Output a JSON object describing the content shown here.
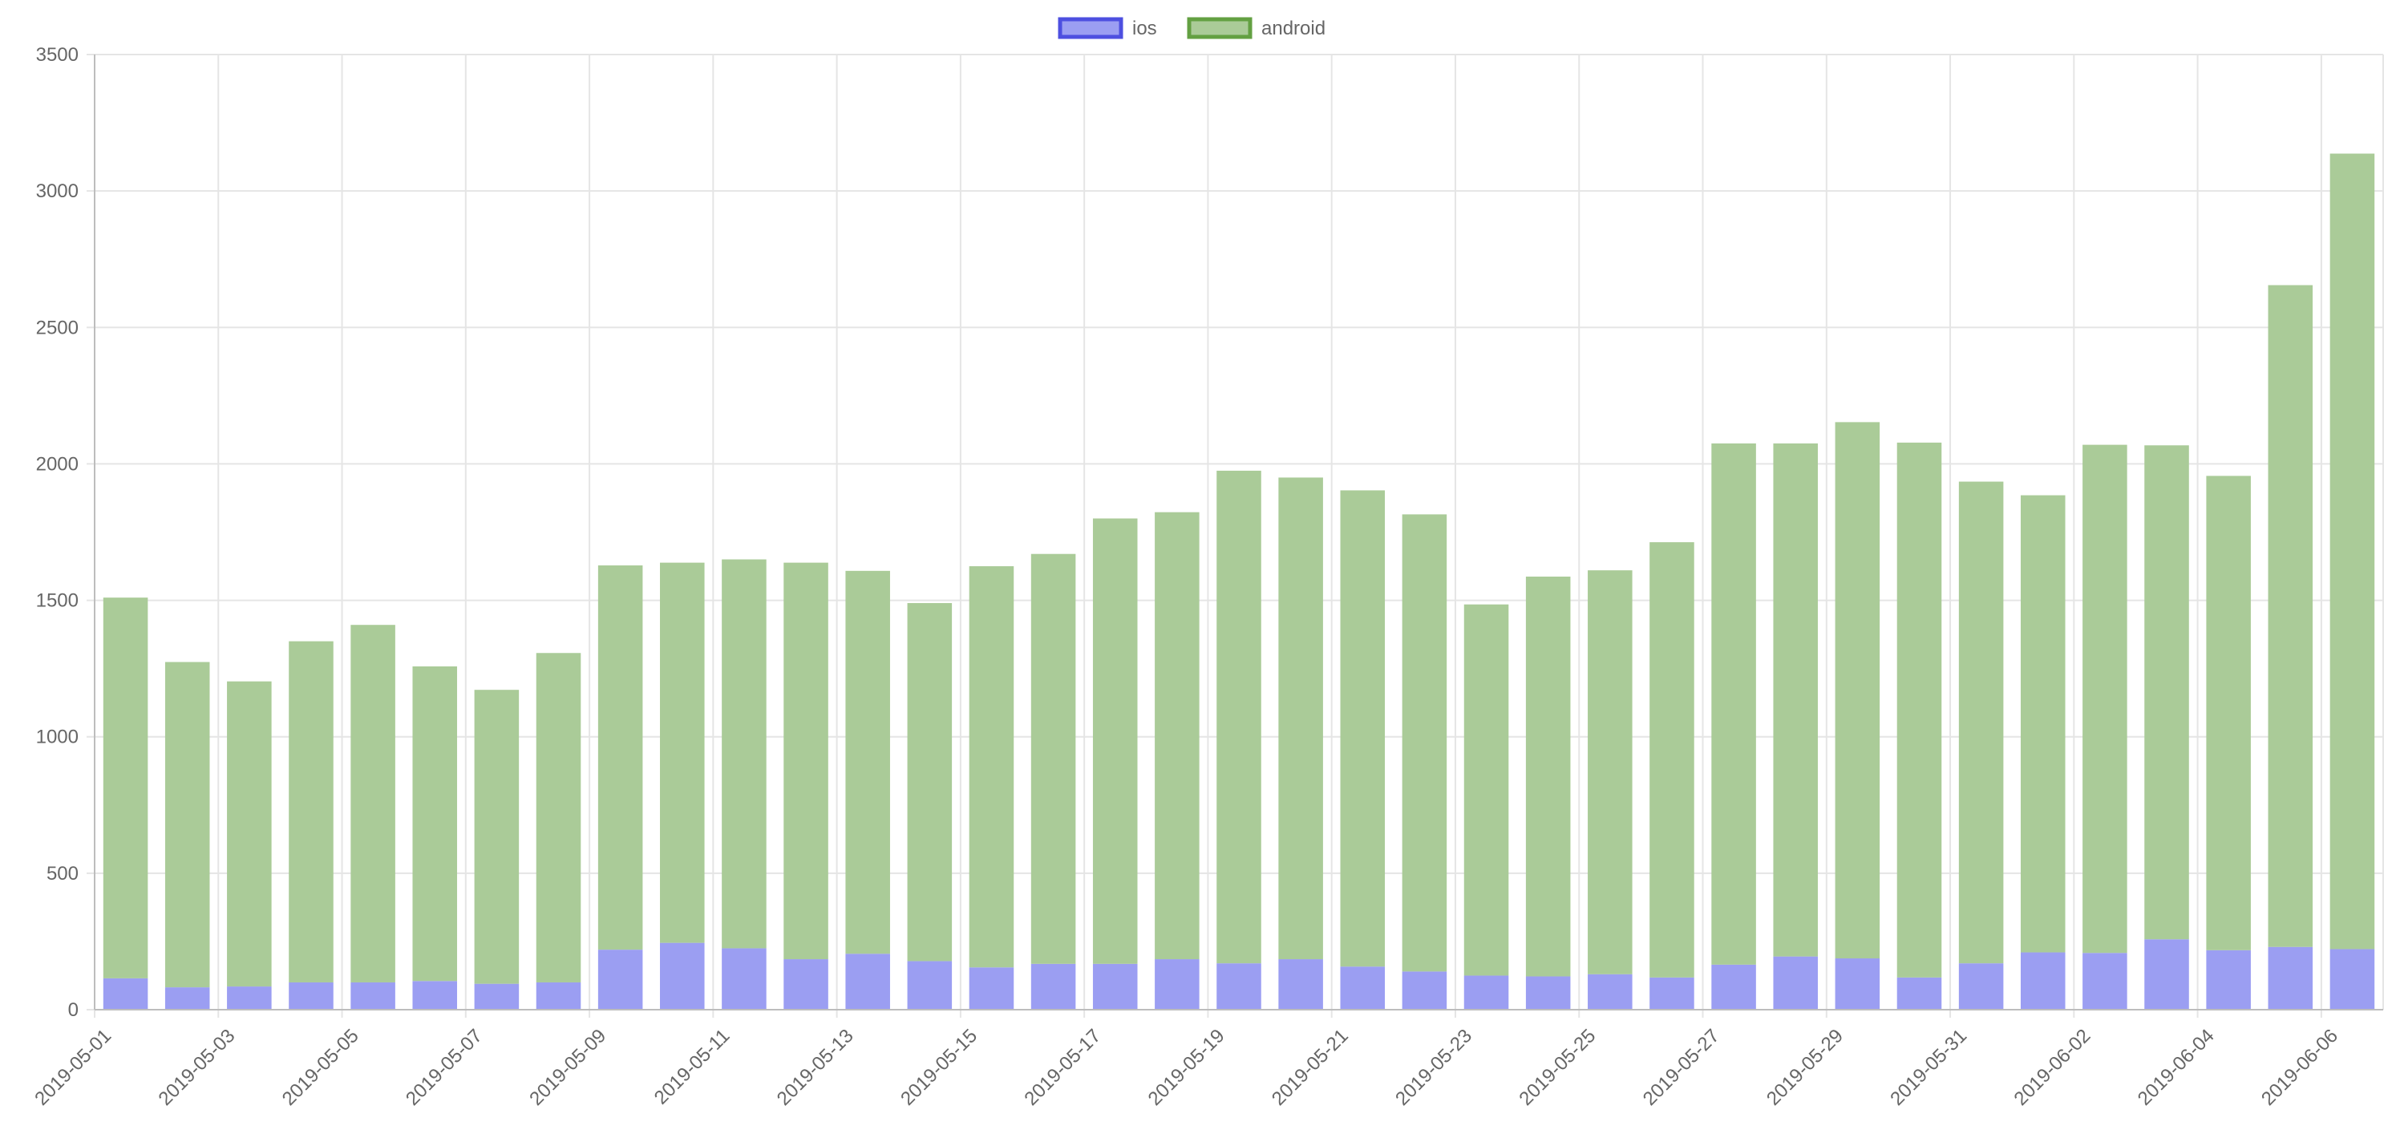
{
  "chart_data": {
    "type": "bar",
    "stacked": true,
    "grid": true,
    "legend_position": "top-center",
    "categories": [
      "2019-05-01",
      "2019-05-02",
      "2019-05-03",
      "2019-05-04",
      "2019-05-05",
      "2019-05-06",
      "2019-05-07",
      "2019-05-08",
      "2019-05-09",
      "2019-05-10",
      "2019-05-11",
      "2019-05-12",
      "2019-05-13",
      "2019-05-14",
      "2019-05-15",
      "2019-05-16",
      "2019-05-17",
      "2019-05-18",
      "2019-05-19",
      "2019-05-20",
      "2019-05-21",
      "2019-05-22",
      "2019-05-23",
      "2019-05-24",
      "2019-05-25",
      "2019-05-26",
      "2019-05-27",
      "2019-05-28",
      "2019-05-29",
      "2019-05-30",
      "2019-05-31",
      "2019-06-01",
      "2019-06-02",
      "2019-06-03",
      "2019-06-04",
      "2019-06-05",
      "2019-06-06"
    ],
    "tick_labels": [
      "2019-05-01",
      "2019-05-03",
      "2019-05-05",
      "2019-05-07",
      "2019-05-09",
      "2019-05-11",
      "2019-05-13",
      "2019-05-15",
      "2019-05-17",
      "2019-05-19",
      "2019-05-21",
      "2019-05-23",
      "2019-05-25",
      "2019-05-27",
      "2019-05-29",
      "2019-05-31",
      "2019-06-02",
      "2019-06-04",
      "2019-06-06"
    ],
    "y_ticks": [
      "0",
      "500",
      "1000",
      "1500",
      "2000",
      "2500",
      "3000",
      "3500"
    ],
    "ylim": [
      0,
      3500
    ],
    "series": [
      {
        "name": "ios",
        "fill": "#9b9ef2",
        "border": "#4d4fe0",
        "values": [
          115,
          82,
          85,
          100,
          100,
          105,
          95,
          100,
          220,
          245,
          225,
          185,
          205,
          178,
          155,
          168,
          168,
          185,
          170,
          185,
          158,
          140,
          125,
          122,
          130,
          118,
          165,
          195,
          188,
          118,
          170,
          210,
          208,
          258,
          218,
          230,
          222
        ]
      },
      {
        "name": "android",
        "fill": "#aacb98",
        "border": "#63a042",
        "values": [
          1395,
          1192,
          1118,
          1250,
          1310,
          1153,
          1077,
          1207,
          1408,
          1393,
          1425,
          1453,
          1403,
          1312,
          1470,
          1502,
          1632,
          1638,
          1805,
          1765,
          1745,
          1675,
          1360,
          1465,
          1480,
          1595,
          1910,
          1880,
          1965,
          1960,
          1765,
          1675,
          1862,
          1810,
          1738,
          2425,
          2915
        ]
      }
    ]
  }
}
